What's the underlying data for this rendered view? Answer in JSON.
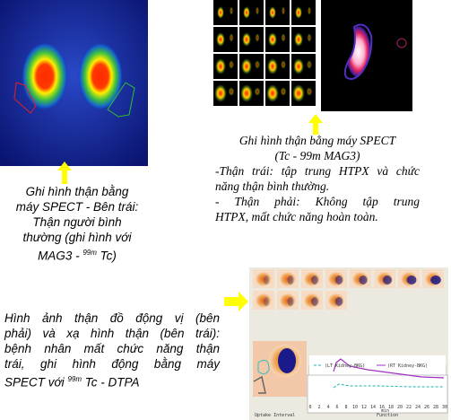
{
  "left_caption": {
    "lines": [
      "Ghi hình thận bằng",
      "máy SPECT - Bên trái:",
      "Thận người bình",
      "thường (ghi hình với",
      "MAG3 -"
    ],
    "isotope": "99m",
    "tail": "Tc)"
  },
  "right_caption": {
    "title_lines": [
      "Ghi hình thận bằng máy SPECT",
      "(Tc - 99m MAG3)"
    ],
    "lines": [
      "-Thận trái: tập trung HTPX và chức",
      "năng thận bình thường.",
      "- Thận phải: Không tập trung",
      "HTPX, mất chức năng hoàn toàn."
    ]
  },
  "bottom_caption": {
    "lines": [
      "Hình ảnh thận đồ động vị (bên",
      "phải) và xạ hình thận (bên trái):",
      "bệnh nhân mất chức năng thận",
      "trái, ghi hình động bằng máy",
      "SPECT với"
    ],
    "isotope": "99m",
    "tail": "Tc - DTPA"
  },
  "screenshot": {
    "legend": [
      "(LT Kidney-BKG)",
      "(RT Kidney-BKG)"
    ],
    "uptake_label": "Uptake Interval",
    "function_label": "Function",
    "x_unit": "min",
    "x_ticks": [
      "0",
      "2",
      "4",
      "6",
      "8",
      "10",
      "12",
      "14",
      "16",
      "18",
      "20",
      "22",
      "24",
      "26",
      "28",
      "30"
    ]
  }
}
